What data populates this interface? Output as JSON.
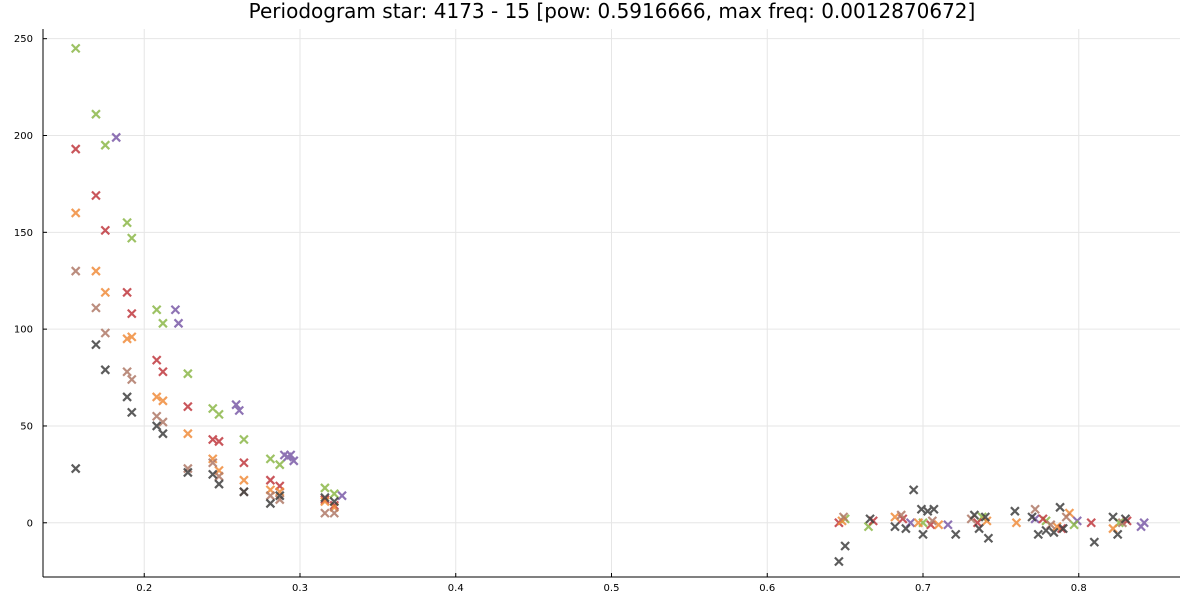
{
  "chart_data": {
    "type": "scatter",
    "title": "Periodogram star: 4173 - 15 [pow: 0.5916666, max freq: 0.0012870672]",
    "xlabel": "",
    "ylabel": "",
    "xlim": [
      0.135,
      0.865
    ],
    "ylim": [
      -28,
      255
    ],
    "x_ticks": [
      0.2,
      0.3,
      0.4,
      0.5,
      0.6,
      0.7,
      0.8
    ],
    "x_tick_labels": [
      "0.2",
      "0.3",
      "0.4",
      "0.5",
      "0.6",
      "0.7",
      "0.8"
    ],
    "y_ticks": [
      0,
      50,
      100,
      150,
      200,
      250
    ],
    "y_tick_labels": [
      "0",
      "50",
      "100",
      "150",
      "200",
      "250"
    ],
    "grid": true,
    "legend": "none",
    "marker": "x",
    "series": [
      {
        "color": "#7b5ba8",
        "x": [
          0.182,
          0.22,
          0.222,
          0.259,
          0.261,
          0.29,
          0.292,
          0.294,
          0.296,
          0.327,
          0.692,
          0.716,
          0.772,
          0.799,
          0.84,
          0.842
        ],
        "y": [
          199,
          110,
          103,
          61,
          58,
          35,
          34,
          35,
          32,
          14,
          0,
          -1,
          2,
          1,
          -2,
          0
        ]
      },
      {
        "color": "#8cb84a",
        "x": [
          0.156,
          0.169,
          0.175,
          0.189,
          0.192,
          0.208,
          0.212,
          0.228,
          0.244,
          0.248,
          0.264,
          0.281,
          0.287,
          0.316,
          0.322,
          0.65,
          0.665,
          0.7,
          0.738,
          0.779,
          0.797,
          0.826
        ],
        "y": [
          245,
          211,
          195,
          155,
          147,
          110,
          103,
          77,
          59,
          56,
          43,
          33,
          30,
          18,
          15,
          2,
          -2,
          0,
          3,
          1,
          -1,
          0
        ]
      },
      {
        "color": "#c0393f",
        "x": [
          0.156,
          0.169,
          0.175,
          0.189,
          0.192,
          0.208,
          0.212,
          0.228,
          0.244,
          0.248,
          0.264,
          0.281,
          0.287,
          0.316,
          0.322,
          0.646,
          0.668,
          0.687,
          0.705,
          0.735,
          0.777,
          0.789,
          0.808,
          0.831
        ],
        "y": [
          193,
          169,
          151,
          119,
          108,
          84,
          78,
          60,
          43,
          42,
          31,
          22,
          19,
          12,
          9,
          0,
          1,
          2,
          -1,
          0,
          2,
          -3,
          0,
          1
        ]
      },
      {
        "color": "#f08c3c",
        "x": [
          0.156,
          0.169,
          0.175,
          0.189,
          0.192,
          0.208,
          0.212,
          0.228,
          0.244,
          0.248,
          0.264,
          0.281,
          0.287,
          0.316,
          0.322,
          0.648,
          0.682,
          0.697,
          0.71,
          0.741,
          0.76,
          0.786,
          0.794,
          0.822
        ],
        "y": [
          160,
          130,
          119,
          95,
          96,
          65,
          63,
          46,
          33,
          27,
          22,
          17,
          16,
          11,
          8,
          1,
          3,
          0,
          -1,
          1,
          0,
          -2,
          5,
          -3
        ]
      },
      {
        "color": "#b07a68",
        "x": [
          0.156,
          0.169,
          0.175,
          0.189,
          0.192,
          0.208,
          0.212,
          0.228,
          0.244,
          0.248,
          0.264,
          0.281,
          0.287,
          0.316,
          0.322,
          0.649,
          0.686,
          0.706,
          0.731,
          0.772,
          0.782,
          0.792,
          0.828
        ],
        "y": [
          130,
          111,
          98,
          78,
          74,
          55,
          52,
          28,
          31,
          24,
          16,
          14,
          12,
          5,
          5,
          3,
          4,
          1,
          2,
          7,
          -1,
          3,
          0
        ],
        "tick_label": ""
      },
      {
        "color": "#404040",
        "x": [
          0.156,
          0.169,
          0.175,
          0.189,
          0.192,
          0.208,
          0.212,
          0.228,
          0.244,
          0.248,
          0.264,
          0.281,
          0.287,
          0.316,
          0.322,
          0.646,
          0.65,
          0.666,
          0.682,
          0.689,
          0.694,
          0.699,
          0.7,
          0.703,
          0.707,
          0.721,
          0.733,
          0.736,
          0.74,
          0.742,
          0.759,
          0.77,
          0.774,
          0.779,
          0.784,
          0.788,
          0.79,
          0.81,
          0.822,
          0.825,
          0.83
        ],
        "y": [
          28,
          92,
          79,
          65,
          57,
          50,
          46,
          26,
          25,
          20,
          16,
          10,
          14,
          13,
          11,
          -20,
          -12,
          2,
          -2,
          -3,
          17,
          7,
          -6,
          6,
          7,
          -6,
          4,
          -3,
          3,
          -8,
          6,
          3,
          -6,
          -4,
          -5,
          8,
          -3,
          -10,
          3,
          -6,
          2
        ]
      }
    ]
  }
}
